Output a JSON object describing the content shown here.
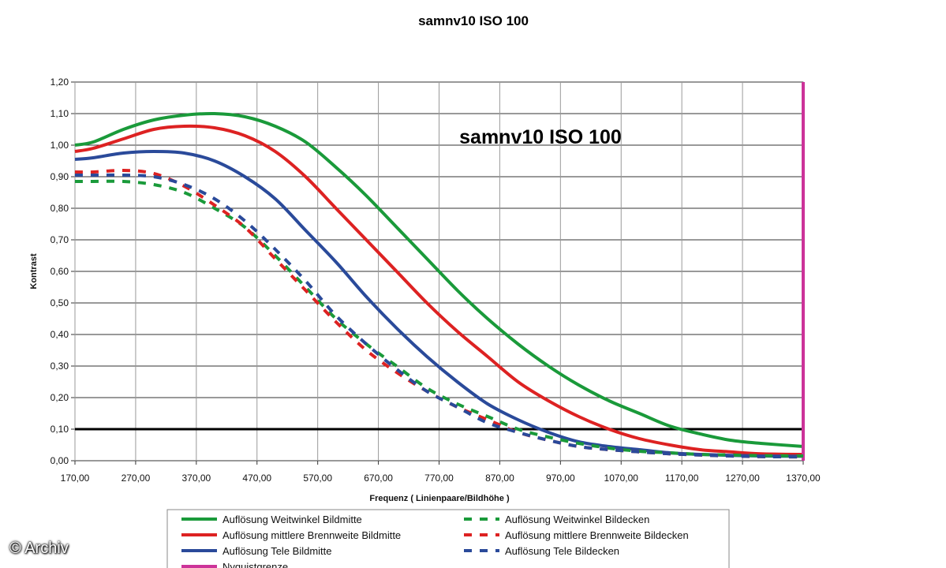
{
  "chart_data": {
    "type": "line",
    "title": "samnv10 ISO 100",
    "inner_title": "samnv10 ISO 100",
    "xlabel": "Frequenz ( Linienpaare/Bildhöhe )",
    "ylabel": "Kontrast",
    "xlim": [
      170,
      1370
    ],
    "ylim": [
      0,
      1.2
    ],
    "x_ticks": [
      "170,00",
      "270,00",
      "370,00",
      "470,00",
      "570,00",
      "670,00",
      "770,00",
      "870,00",
      "970,00",
      "1070,00",
      "1170,00",
      "1270,00",
      "1370,00"
    ],
    "y_ticks": [
      "0,00",
      "0,10",
      "0,20",
      "0,30",
      "0,40",
      "0,50",
      "0,60",
      "0,70",
      "0,80",
      "0,90",
      "1,00",
      "1,10",
      "1,20"
    ],
    "grid": true,
    "legend_position": "bottom",
    "reference_line": {
      "y": 0.1,
      "color": "#000000"
    },
    "nyquist": {
      "x": 1370,
      "name": "Nyquistgrenze",
      "color": "#cc3399"
    },
    "series": [
      {
        "name": "Auflösung Weitwinkel Bildmitte",
        "color": "#1a9a3a",
        "dashed": false,
        "x": [
          170,
          200,
          250,
          300,
          350,
          400,
          450,
          500,
          550,
          600,
          650,
          700,
          750,
          800,
          850,
          900,
          950,
          1000,
          1050,
          1100,
          1150,
          1200,
          1250,
          1300,
          1370
        ],
        "y": [
          1.0,
          1.01,
          1.05,
          1.08,
          1.095,
          1.1,
          1.09,
          1.06,
          1.01,
          0.93,
          0.84,
          0.74,
          0.64,
          0.54,
          0.45,
          0.37,
          0.3,
          0.24,
          0.19,
          0.15,
          0.11,
          0.085,
          0.065,
          0.055,
          0.045
        ]
      },
      {
        "name": "Auflösung mittlere Brennweite Bildmitte",
        "color": "#dd2222",
        "dashed": false,
        "x": [
          170,
          200,
          250,
          300,
          350,
          400,
          450,
          500,
          550,
          600,
          650,
          700,
          750,
          800,
          850,
          900,
          950,
          1000,
          1050,
          1100,
          1150,
          1200,
          1250,
          1300,
          1370
        ],
        "y": [
          0.98,
          0.99,
          1.02,
          1.05,
          1.06,
          1.055,
          1.03,
          0.98,
          0.9,
          0.8,
          0.7,
          0.6,
          0.5,
          0.41,
          0.33,
          0.25,
          0.19,
          0.14,
          0.1,
          0.07,
          0.05,
          0.035,
          0.028,
          0.022,
          0.02
        ]
      },
      {
        "name": "Auflösung Tele Bildmitte",
        "color": "#2a4a9a",
        "dashed": false,
        "x": [
          170,
          200,
          250,
          300,
          350,
          400,
          450,
          500,
          550,
          600,
          650,
          700,
          750,
          800,
          850,
          900,
          950,
          1000,
          1050,
          1100,
          1150,
          1200,
          1250,
          1300,
          1370
        ],
        "y": [
          0.955,
          0.96,
          0.975,
          0.98,
          0.975,
          0.95,
          0.9,
          0.83,
          0.73,
          0.63,
          0.52,
          0.42,
          0.33,
          0.25,
          0.18,
          0.13,
          0.09,
          0.06,
          0.045,
          0.035,
          0.025,
          0.02,
          0.017,
          0.015,
          0.014
        ]
      },
      {
        "name": "Nyquistgrenze",
        "color": "#cc3399",
        "dashed": false,
        "x": [
          1370,
          1370
        ],
        "y": [
          0,
          1.2
        ]
      },
      {
        "name": "Auflösung Weitwinkel Bildecken",
        "color": "#1a9a3a",
        "dashed": true,
        "x": [
          170,
          200,
          250,
          300,
          350,
          400,
          450,
          500,
          550,
          600,
          650,
          700,
          750,
          800,
          850,
          900,
          950,
          1000,
          1050,
          1100,
          1150,
          1200,
          1250,
          1300,
          1370
        ],
        "y": [
          0.885,
          0.885,
          0.885,
          0.875,
          0.85,
          0.8,
          0.74,
          0.65,
          0.55,
          0.45,
          0.37,
          0.3,
          0.23,
          0.18,
          0.14,
          0.1,
          0.075,
          0.055,
          0.04,
          0.03,
          0.025,
          0.02,
          0.018,
          0.016,
          0.015
        ]
      },
      {
        "name": "Auflösung mittlere Brennweite Bildecken",
        "color": "#dd2222",
        "dashed": true,
        "x": [
          170,
          200,
          250,
          300,
          350,
          400,
          450,
          500,
          550,
          600,
          650,
          700,
          750,
          800,
          850,
          900,
          950,
          1000,
          1050,
          1100,
          1150,
          1200,
          1250,
          1300,
          1370
        ],
        "y": [
          0.915,
          0.915,
          0.92,
          0.91,
          0.87,
          0.81,
          0.74,
          0.64,
          0.54,
          0.44,
          0.35,
          0.28,
          0.22,
          0.17,
          0.13,
          0.09,
          0.065,
          0.045,
          0.035,
          0.028,
          0.022,
          0.018,
          0.015,
          0.013,
          0.012
        ]
      },
      {
        "name": "Auflösung Tele Bildecken",
        "color": "#2a4a9a",
        "dashed": true,
        "x": [
          170,
          200,
          250,
          300,
          350,
          400,
          450,
          500,
          550,
          600,
          650,
          700,
          750,
          800,
          850,
          900,
          950,
          1000,
          1050,
          1100,
          1150,
          1200,
          1250,
          1300,
          1370
        ],
        "y": [
          0.905,
          0.905,
          0.905,
          0.9,
          0.875,
          0.83,
          0.76,
          0.67,
          0.57,
          0.46,
          0.37,
          0.29,
          0.22,
          0.17,
          0.12,
          0.09,
          0.065,
          0.045,
          0.035,
          0.028,
          0.022,
          0.018,
          0.015,
          0.013,
          0.012
        ]
      }
    ]
  },
  "watermark": "© Archiv"
}
